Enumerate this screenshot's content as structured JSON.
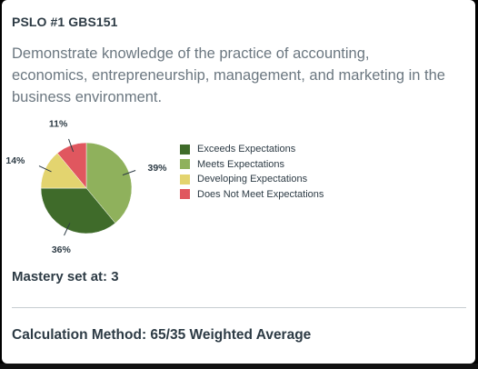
{
  "card": {
    "title": "PSLO #1 GBS151",
    "description": "Demonstrate knowledge of the practice of accounting, economics, entrepreneurship, management, and marketing in the business environment.",
    "mastery": "Mastery set at: 3",
    "calculation": "Calculation Method: 65/35 Weighted Average"
  },
  "chart_data": {
    "type": "pie",
    "categories": [
      "Exceeds Expectations",
      "Meets Expectations",
      "Developing Expectations",
      "Does Not Meet Expectations"
    ],
    "values": [
      36,
      39,
      14,
      11
    ],
    "labels": [
      "36%",
      "39%",
      "14%",
      "11%"
    ],
    "colors": [
      "#3f6b2a",
      "#8fb15c",
      "#e3d46f",
      "#e0575f"
    ],
    "legend_position": "right"
  }
}
